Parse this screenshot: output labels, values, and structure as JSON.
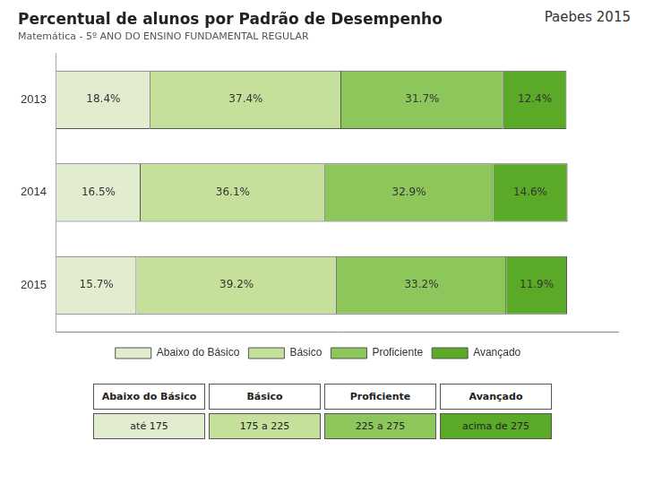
{
  "chart_data": {
    "type": "bar",
    "orientation": "horizontal",
    "stacked": true,
    "title": "Percentual de alunos por Padrão de Desempenho",
    "subtitle": "Matemática - 5º ANO DO ENSINO FUNDAMENTAL REGULAR",
    "annotations": [
      "Paebes 2015"
    ],
    "categories": [
      "2013",
      "2014",
      "2015"
    ],
    "series": [
      {
        "name": "Abaixo do Básico",
        "color": "#e2edd0",
        "values": [
          18.4,
          16.5,
          15.7
        ],
        "value_labels": [
          "18.4%",
          "16.5%",
          "15.7%"
        ]
      },
      {
        "name": "Básico",
        "color": "#c5e09a",
        "values": [
          37.4,
          36.1,
          39.2
        ],
        "value_labels": [
          "37.4%",
          "36.1%",
          "39.2%"
        ]
      },
      {
        "name": "Proficiente",
        "color": "#8dc65a",
        "values": [
          31.7,
          32.9,
          33.2
        ],
        "value_labels": [
          "31.7%",
          "32.9%",
          "33.2%"
        ]
      },
      {
        "name": "Avançado",
        "color": "#5aaa28",
        "values": [
          12.4,
          14.6,
          11.9
        ],
        "value_labels": [
          "12.4%",
          "14.6%",
          "11.9%"
        ]
      }
    ],
    "xlim": [
      0,
      110
    ],
    "xticks": [],
    "tick_labels": "y",
    "grid": false,
    "legend": "bottom",
    "data_labels": true,
    "table": {
      "headers": [
        "Abaixo do Básico",
        "Básico",
        "Proficiente",
        "Avançado"
      ],
      "rows": [
        [
          "até 175",
          "175 a 225",
          "225 a 275",
          "acima de 275"
        ]
      ],
      "colors": [
        "#e2edd0",
        "#c5e09a",
        "#8dc65a",
        "#5aaa28"
      ]
    }
  }
}
